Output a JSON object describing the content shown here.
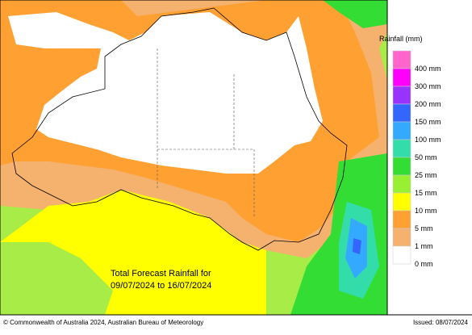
{
  "map": {
    "annotation": [
      "Total Forecast Rainfall for",
      "09/07/2024 to 16/07/2024"
    ],
    "legend": {
      "title": "Rainfall (mm)",
      "items": [
        {
          "label": "400 mm",
          "color": "#ff66cc"
        },
        {
          "label": "300 mm",
          "color": "#ff00ff"
        },
        {
          "label": "200 mm",
          "color": "#9933ff"
        },
        {
          "label": "150 mm",
          "color": "#3366ff"
        },
        {
          "label": "100 mm",
          "color": "#33aaff"
        },
        {
          "label": "50 mm",
          "color": "#33ddaa"
        },
        {
          "label": "25 mm",
          "color": "#33dd33"
        },
        {
          "label": "15 mm",
          "color": "#99f033"
        },
        {
          "label": "10 mm",
          "color": "#ffff00"
        },
        {
          "label": "5 mm",
          "color": "#ffa033"
        },
        {
          "label": "1 mm",
          "color": "#f5b26e"
        },
        {
          "label": "0 mm",
          "color": "#ffffff"
        }
      ]
    },
    "footer": {
      "copyright": "© Commonwealth of Australia 2024, Australian Bureau of Meteorology",
      "issued": "Issued: 08/07/2024"
    }
  }
}
